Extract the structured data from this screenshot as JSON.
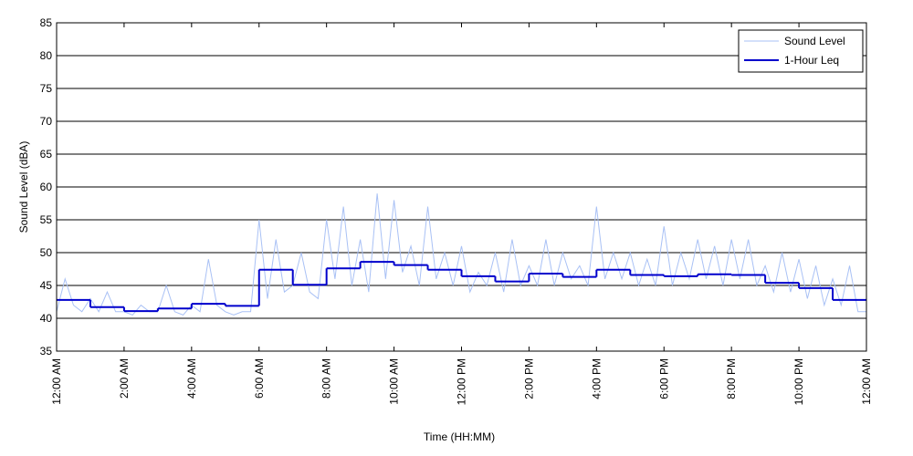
{
  "chart_data": {
    "type": "line",
    "x_label": "Time (HH:MM)",
    "y_label": "Sound Level (dBA)",
    "xlim": [
      0,
      24
    ],
    "ylim": [
      35,
      85
    ],
    "xticks": [
      {
        "value": 0,
        "label": "12:00 AM"
      },
      {
        "value": 2,
        "label": "2:00 AM"
      },
      {
        "value": 4,
        "label": "4:00 AM"
      },
      {
        "value": 6,
        "label": "6:00 AM"
      },
      {
        "value": 8,
        "label": "8:00 AM"
      },
      {
        "value": 10,
        "label": "10:00 AM"
      },
      {
        "value": 12,
        "label": "12:00 PM"
      },
      {
        "value": 14,
        "label": "2:00 PM"
      },
      {
        "value": 16,
        "label": "4:00 PM"
      },
      {
        "value": 18,
        "label": "6:00 PM"
      },
      {
        "value": 20,
        "label": "8:00 PM"
      },
      {
        "value": 22,
        "label": "10:00 PM"
      },
      {
        "value": 24,
        "label": "12:00 AM"
      }
    ],
    "yticks": [
      35,
      40,
      45,
      50,
      55,
      60,
      65,
      70,
      75,
      80,
      85
    ],
    "grid": true,
    "legend": "upper right",
    "series": [
      {
        "name": "Sound Level",
        "color": "#a9c1f5",
        "style": "line",
        "x": [
          0,
          0.25,
          0.5,
          0.75,
          1,
          1.25,
          1.5,
          1.75,
          2,
          2.25,
          2.5,
          2.75,
          3,
          3.25,
          3.5,
          3.75,
          4,
          4.25,
          4.5,
          4.75,
          5,
          5.25,
          5.5,
          5.75,
          6,
          6.25,
          6.5,
          6.75,
          7,
          7.25,
          7.5,
          7.75,
          8,
          8.25,
          8.5,
          8.75,
          9,
          9.25,
          9.5,
          9.75,
          10,
          10.25,
          10.5,
          10.75,
          11,
          11.25,
          11.5,
          11.75,
          12,
          12.25,
          12.5,
          12.75,
          13,
          13.25,
          13.5,
          13.75,
          14,
          14.25,
          14.5,
          14.75,
          15,
          15.25,
          15.5,
          15.75,
          16,
          16.25,
          16.5,
          16.75,
          17,
          17.25,
          17.5,
          17.75,
          18,
          18.25,
          18.5,
          18.75,
          19,
          19.25,
          19.5,
          19.75,
          20,
          20.25,
          20.5,
          20.75,
          21,
          21.25,
          21.5,
          21.75,
          22,
          22.25,
          22.5,
          22.75,
          23,
          23.25,
          23.5,
          23.75,
          24
        ],
        "values": [
          41,
          46,
          42,
          41,
          43,
          41,
          44,
          41,
          41,
          40.5,
          42,
          41,
          41,
          45,
          41,
          40.5,
          42,
          41,
          49,
          42,
          41,
          40.5,
          41,
          41,
          55,
          43,
          52,
          44,
          45,
          50,
          44,
          43,
          55,
          46,
          57,
          45,
          52,
          44,
          59,
          46,
          58,
          47,
          51,
          45,
          57,
          46,
          50,
          45,
          51,
          44,
          47,
          45,
          50,
          44,
          52,
          45,
          48,
          45,
          52,
          45,
          50,
          46,
          48,
          45,
          57,
          46,
          50,
          46,
          50,
          45,
          49,
          45,
          54,
          45,
          50,
          46,
          52,
          46,
          51,
          45,
          52,
          46,
          52,
          45,
          48,
          44,
          50,
          44,
          49,
          43,
          48,
          42,
          46,
          42,
          48,
          41,
          41
        ]
      },
      {
        "name": "1-Hour Leq",
        "color": "#0000cc",
        "style": "step",
        "x": [
          0,
          1,
          2,
          3,
          4,
          5,
          6,
          7,
          8,
          9,
          10,
          11,
          12,
          13,
          14,
          15,
          16,
          17,
          18,
          19,
          20,
          21,
          22,
          23
        ],
        "values": [
          42.8,
          41.7,
          41.1,
          41.5,
          42.2,
          41.9,
          47.4,
          45.1,
          47.6,
          48.6,
          48.1,
          47.4,
          46.4,
          45.6,
          46.8,
          46.3,
          47.4,
          46.6,
          46.4,
          46.7,
          46.6,
          45.4,
          44.6,
          42.8
        ]
      }
    ]
  }
}
